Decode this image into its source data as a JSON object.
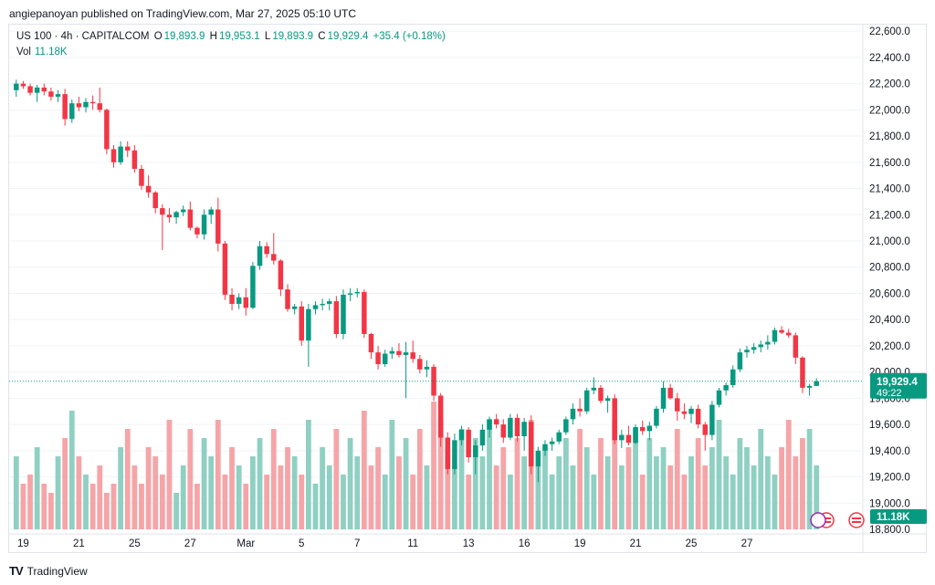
{
  "header": {
    "publisher_line": "angiepanoyan published on TradingView.com, Mar 27, 2025 05:10 UTC"
  },
  "legend": {
    "symbol": "US 100 · 4h · CAPITALCOM",
    "open_label": "O",
    "open": "19,893.9",
    "high_label": "H",
    "high": "19,953.1",
    "low_label": "L",
    "low": "19,893.9",
    "close_label": "C",
    "close": "19,929.4",
    "change": "+35.4 (+0.18%)",
    "vol_label": "Vol",
    "vol_value": "11.18K"
  },
  "price_tag": {
    "price": "19,929.4",
    "countdown": "49:22"
  },
  "vol_tag": "11.18K",
  "footer": {
    "brand": "TradingView"
  },
  "colors": {
    "up": "#089981",
    "down": "#f23645",
    "up_vol": "#8fd0c2",
    "down_vol": "#f5a5a8",
    "grid": "#f0f3fa"
  },
  "chart_data": {
    "type": "candlestick",
    "title": "US 100 · 4h · CAPITALCOM",
    "y_axis_labels": [
      "22,600.0",
      "22,400.0",
      "22,200.0",
      "22,000.0",
      "21,800.0",
      "21,600.0",
      "21,400.0",
      "21,200.0",
      "21,000.0",
      "20,800.0",
      "20,600.0",
      "20,400.0",
      "20,200.0",
      "20,000.0",
      "19,800.0",
      "19,600.0",
      "19,400.0",
      "19,200.0",
      "19,000.0",
      "18,800.0"
    ],
    "y_ticks": [
      22600,
      22400,
      22200,
      22000,
      21800,
      21600,
      21400,
      21200,
      21000,
      20800,
      20600,
      20400,
      20200,
      20000,
      19800,
      19600,
      19400,
      19200,
      19000,
      18800
    ],
    "ylim": [
      18800,
      22650
    ],
    "x_labels": [
      "19",
      "21",
      "25",
      "27",
      "Mar",
      "5",
      "7",
      "11",
      "13",
      "16",
      "19",
      "21",
      "25",
      "27"
    ],
    "x_label_index": [
      1,
      9,
      17,
      25,
      33,
      41,
      49,
      57,
      65,
      73,
      81,
      89,
      97,
      105
    ],
    "last_price": 19929.4,
    "candles": [
      [
        22150,
        22230,
        22100,
        22200
      ],
      [
        22200,
        22220,
        22160,
        22180
      ],
      [
        22180,
        22200,
        22110,
        22130
      ],
      [
        22130,
        22190,
        22060,
        22170
      ],
      [
        22170,
        22200,
        22110,
        22140
      ],
      [
        22140,
        22170,
        22070,
        22100
      ],
      [
        22100,
        22150,
        22060,
        22120
      ],
      [
        22120,
        22160,
        21880,
        21930
      ],
      [
        21930,
        22080,
        21900,
        22050
      ],
      [
        22050,
        22100,
        21990,
        22020
      ],
      [
        22020,
        22090,
        21980,
        22060
      ],
      [
        22060,
        22110,
        22000,
        22050
      ],
      [
        22050,
        22170,
        21980,
        22000
      ],
      [
        22000,
        22010,
        21660,
        21700
      ],
      [
        21700,
        21730,
        21560,
        21600
      ],
      [
        21600,
        21760,
        21580,
        21720
      ],
      [
        21720,
        21760,
        21640,
        21690
      ],
      [
        21690,
        21730,
        21520,
        21550
      ],
      [
        21550,
        21580,
        21390,
        21420
      ],
      [
        21420,
        21500,
        21330,
        21370
      ],
      [
        21370,
        21380,
        21210,
        21250
      ],
      [
        21250,
        21280,
        20930,
        21200
      ],
      [
        21200,
        21250,
        21140,
        21180
      ],
      [
        21180,
        21230,
        21130,
        21220
      ],
      [
        21220,
        21270,
        21190,
        21240
      ],
      [
        21240,
        21300,
        21080,
        21100
      ],
      [
        21100,
        21110,
        21020,
        21050
      ],
      [
        21050,
        21240,
        21010,
        21200
      ],
      [
        21200,
        21260,
        21130,
        21240
      ],
      [
        21240,
        21330,
        20920,
        20980
      ],
      [
        20980,
        21000,
        20550,
        20590
      ],
      [
        20590,
        20640,
        20470,
        20520
      ],
      [
        20520,
        20600,
        20480,
        20570
      ],
      [
        20570,
        20640,
        20430,
        20490
      ],
      [
        20490,
        20840,
        20480,
        20810
      ],
      [
        20810,
        21000,
        20780,
        20960
      ],
      [
        20960,
        20990,
        20870,
        20900
      ],
      [
        20900,
        21060,
        20820,
        20850
      ],
      [
        20850,
        20860,
        20580,
        20630
      ],
      [
        20630,
        20670,
        20460,
        20480
      ],
      [
        20480,
        20520,
        20440,
        20500
      ],
      [
        20500,
        20540,
        20200,
        20240
      ],
      [
        20240,
        20520,
        20040,
        20480
      ],
      [
        20480,
        20540,
        20440,
        20510
      ],
      [
        20510,
        20560,
        20470,
        20520
      ],
      [
        20520,
        20560,
        20470,
        20540
      ],
      [
        20540,
        20580,
        20260,
        20290
      ],
      [
        20290,
        20630,
        20250,
        20590
      ],
      [
        20590,
        20640,
        20540,
        20600
      ],
      [
        20600,
        20640,
        20570,
        20610
      ],
      [
        20610,
        20630,
        20260,
        20290
      ],
      [
        20290,
        20300,
        20100,
        20150
      ],
      [
        20150,
        20200,
        20020,
        20060
      ],
      [
        20060,
        20170,
        20040,
        20140
      ],
      [
        20140,
        20190,
        20100,
        20160
      ],
      [
        20160,
        20220,
        20110,
        20130
      ],
      [
        20130,
        20230,
        19800,
        20150
      ],
      [
        20150,
        20240,
        20070,
        20100
      ],
      [
        20100,
        20130,
        19990,
        20020
      ],
      [
        20020,
        20090,
        19960,
        20040
      ],
      [
        20040,
        20060,
        19780,
        19820
      ],
      [
        19820,
        19840,
        19430,
        19500
      ],
      [
        19500,
        19540,
        19220,
        19260
      ],
      [
        19260,
        19530,
        19220,
        19480
      ],
      [
        19480,
        19590,
        19440,
        19560
      ],
      [
        19560,
        19580,
        19310,
        19350
      ],
      [
        19350,
        19480,
        19220,
        19440
      ],
      [
        19440,
        19600,
        19400,
        19560
      ],
      [
        19560,
        19660,
        19500,
        19640
      ],
      [
        19640,
        19680,
        19570,
        19600
      ],
      [
        19600,
        19640,
        19460,
        19500
      ],
      [
        19500,
        19680,
        19480,
        19650
      ],
      [
        19650,
        19680,
        19470,
        19510
      ],
      [
        19510,
        19650,
        19400,
        19620
      ],
      [
        19620,
        19670,
        19220,
        19280
      ],
      [
        19280,
        19430,
        19160,
        19400
      ],
      [
        19400,
        19480,
        19360,
        19450
      ],
      [
        19450,
        19500,
        19400,
        19470
      ],
      [
        19470,
        19560,
        19450,
        19540
      ],
      [
        19540,
        19660,
        19520,
        19640
      ],
      [
        19640,
        19760,
        19600,
        19720
      ],
      [
        19720,
        19800,
        19660,
        19700
      ],
      [
        19700,
        19880,
        19680,
        19860
      ],
      [
        19860,
        19960,
        19830,
        19880
      ],
      [
        19880,
        19900,
        19760,
        19780
      ],
      [
        19780,
        19820,
        19690,
        19800
      ],
      [
        19800,
        19830,
        19450,
        19480
      ],
      [
        19480,
        19560,
        19420,
        19520
      ],
      [
        19520,
        19590,
        19440,
        19460
      ],
      [
        19460,
        19600,
        19450,
        19580
      ],
      [
        19580,
        19630,
        19520,
        19550
      ],
      [
        19550,
        19620,
        19480,
        19590
      ],
      [
        19590,
        19740,
        19570,
        19720
      ],
      [
        19720,
        19930,
        19690,
        19880
      ],
      [
        19880,
        19910,
        19790,
        19800
      ],
      [
        19800,
        19840,
        19630,
        19700
      ],
      [
        19700,
        19760,
        19640,
        19680
      ],
      [
        19680,
        19740,
        19610,
        19720
      ],
      [
        19720,
        19750,
        19570,
        19600
      ],
      [
        19600,
        19620,
        19400,
        19520
      ],
      [
        19520,
        19780,
        19480,
        19750
      ],
      [
        19750,
        19880,
        19730,
        19860
      ],
      [
        19860,
        19920,
        19820,
        19900
      ],
      [
        19900,
        20050,
        19880,
        20020
      ],
      [
        20020,
        20180,
        20000,
        20150
      ],
      [
        20150,
        20200,
        20110,
        20170
      ],
      [
        20170,
        20220,
        20140,
        20190
      ],
      [
        20190,
        20240,
        20150,
        20210
      ],
      [
        20210,
        20280,
        20170,
        20230
      ],
      [
        20230,
        20340,
        20210,
        20320
      ],
      [
        20320,
        20350,
        20290,
        20300
      ],
      [
        20300,
        20330,
        20260,
        20280
      ],
      [
        20280,
        20300,
        20060,
        20110
      ],
      [
        20110,
        20120,
        19840,
        19880
      ],
      [
        19880,
        19910,
        19820,
        19894
      ],
      [
        19894,
        19953,
        19894,
        19929
      ]
    ],
    "volumes": [
      8,
      5,
      6,
      9,
      5,
      4,
      8,
      10,
      13,
      8,
      6,
      5,
      7,
      4,
      5,
      9,
      11,
      7,
      5,
      9,
      8,
      6,
      12,
      4,
      7,
      11,
      5,
      10,
      8,
      12,
      6,
      9,
      7,
      5,
      8,
      10,
      6,
      11,
      7,
      9,
      8,
      6,
      12,
      5,
      9,
      7,
      11,
      6,
      10,
      8,
      13,
      7,
      9,
      6,
      12,
      8,
      10,
      6,
      11,
      7,
      14,
      12,
      9,
      7,
      11,
      6,
      10,
      8,
      12,
      7,
      9,
      6,
      10,
      8,
      12,
      7,
      9,
      6,
      8,
      10,
      7,
      11,
      9,
      6,
      10,
      8,
      12,
      7,
      9,
      11,
      6,
      10,
      8,
      9,
      7,
      11,
      6,
      8,
      10,
      7,
      9,
      12,
      8,
      6,
      10,
      9,
      7,
      11,
      8,
      6,
      9,
      12,
      8,
      10,
      11,
      7
    ]
  }
}
